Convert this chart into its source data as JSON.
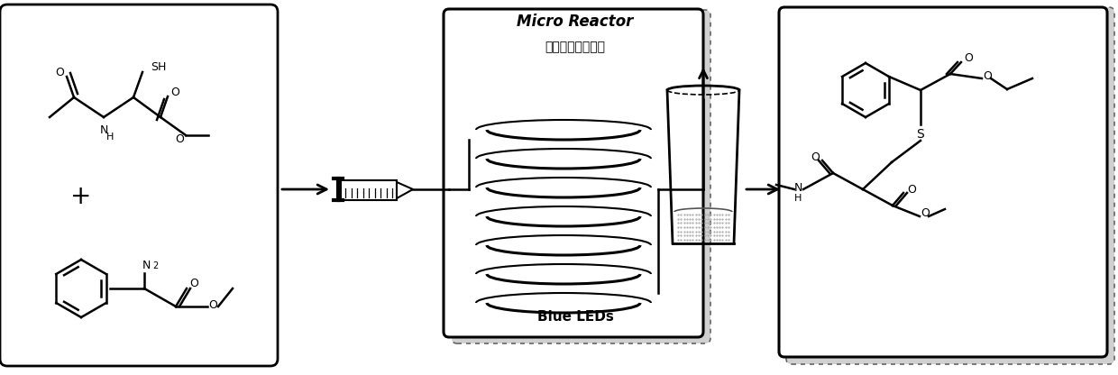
{
  "bg_color": "#ffffff",
  "micro_reactor_label": "Micro Reactor",
  "chinese_label": "流速、时间、温度",
  "blue_leds_label": "Blue LEDs",
  "fig_width": 12.4,
  "fig_height": 4.16,
  "dpi": 100,
  "lw": 1.8
}
